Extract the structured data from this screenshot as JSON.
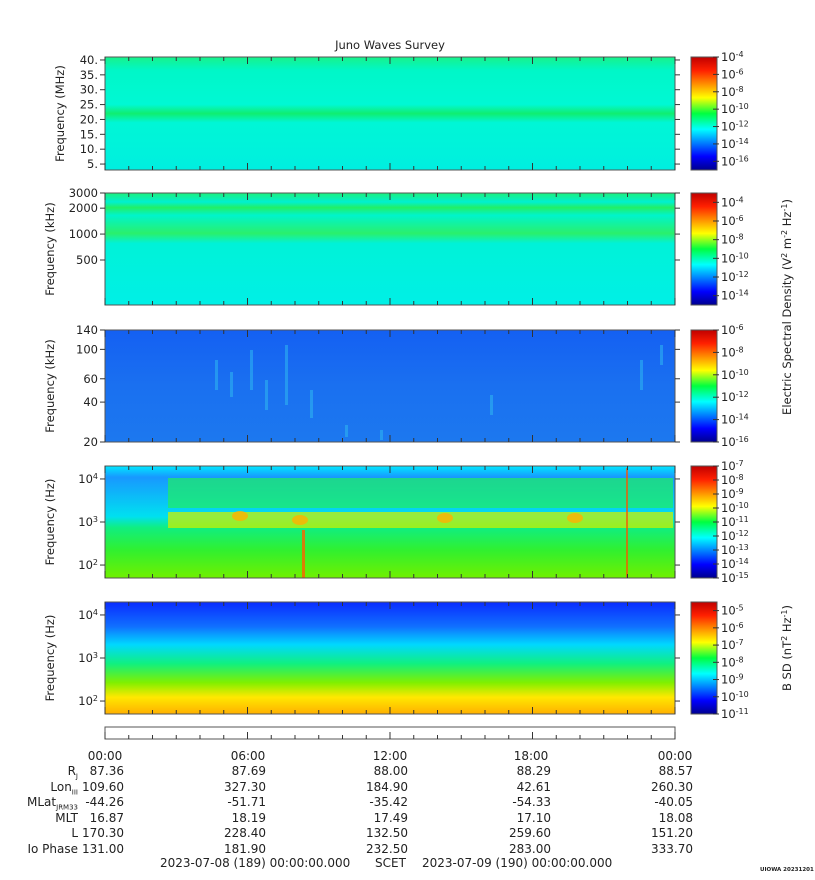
{
  "chart_data": [
    {
      "type": "heatmap",
      "title": "Juno Waves Survey",
      "ylabel": "Frequency (MHz)",
      "yscale": "linear",
      "ylim": [
        3,
        41
      ],
      "y_ticks": [
        5,
        10,
        15,
        20,
        25,
        30,
        35,
        40
      ],
      "y_tick_labels": [
        "5.",
        "10.",
        "15.",
        "20.",
        "25.",
        "30.",
        "35.",
        "40."
      ],
      "colorbar": {
        "min_exp": -17,
        "max_exp": -4,
        "tick_exps": [
          -16,
          -14,
          -12,
          -10,
          -8,
          -6,
          -4
        ]
      }
    },
    {
      "type": "heatmap",
      "ylabel": "Frequency (kHz)",
      "yscale": "log",
      "ylim": [
        150,
        3000
      ],
      "y_ticks": [
        500,
        1000,
        2000,
        3000
      ],
      "y_tick_labels": [
        "500",
        "1000",
        "2000",
        "3000"
      ],
      "colorbar": {
        "min_exp": -15,
        "max_exp": -3,
        "tick_exps": [
          -14,
          -12,
          -10,
          -8,
          -6,
          -4
        ]
      }
    },
    {
      "type": "heatmap",
      "ylabel": "Frequency (kHz)",
      "yscale": "log",
      "ylim": [
        20,
        140
      ],
      "y_ticks": [
        20,
        40,
        60,
        100,
        140
      ],
      "y_tick_labels": [
        "20",
        "40",
        "60",
        "100",
        "140"
      ],
      "colorbar": {
        "min_exp": -16,
        "max_exp": -6,
        "tick_exps": [
          -16,
          -14,
          -12,
          -10,
          -8,
          -6
        ]
      }
    },
    {
      "type": "heatmap",
      "ylabel": "Frequency (Hz)",
      "yscale": "log",
      "ylim": [
        50,
        20000
      ],
      "y_ticks": [
        100,
        1000,
        10000
      ],
      "y_tick_exps": [
        2,
        3,
        4
      ],
      "colorbar": {
        "min_exp": -15,
        "max_exp": -7,
        "tick_exps": [
          -15,
          -14,
          -13,
          -12,
          -11,
          -10,
          -9,
          -8,
          -7
        ]
      }
    },
    {
      "type": "heatmap",
      "ylabel": "Frequency (Hz)",
      "yscale": "log",
      "ylim": [
        50,
        20000
      ],
      "y_ticks": [
        100,
        1000,
        10000
      ],
      "y_tick_exps": [
        2,
        3,
        4
      ],
      "colorbar": {
        "min_exp": -11,
        "max_exp": -4.5,
        "tick_exps": [
          -11,
          -10,
          -9,
          -8,
          -7,
          -6,
          -5
        ]
      }
    }
  ],
  "colorbar_label_e": "Electric Spectral Density (V",
  "colorbar_label_b": "B SD (nT",
  "time_axis": {
    "labels": [
      "00:00",
      "06:00",
      "12:00",
      "18:00",
      "00:00"
    ]
  },
  "ephemeris": {
    "rows": [
      {
        "name": "R",
        "sub": "J",
        "values": [
          "87.36",
          "87.69",
          "88.00",
          "88.29",
          "88.57"
        ]
      },
      {
        "name": "Lon",
        "sub": "III",
        "values": [
          "109.60",
          "327.30",
          "184.90",
          "42.61",
          "260.30"
        ]
      },
      {
        "name": "MLat",
        "sub": "JRM33",
        "values": [
          "-44.26",
          "-51.71",
          "-35.42",
          "-54.33",
          "-40.05"
        ]
      },
      {
        "name": "MLT",
        "sub": "",
        "values": [
          "16.87",
          "18.19",
          "17.49",
          "17.10",
          "18.08"
        ]
      },
      {
        "name": "L",
        "sub": "",
        "values": [
          "170.30",
          "228.40",
          "132.50",
          "259.60",
          "151.20"
        ]
      },
      {
        "name": "Io Phase",
        "sub": "",
        "values": [
          "131.00",
          "181.90",
          "232.50",
          "283.00",
          "333.70"
        ]
      }
    ]
  },
  "footer": {
    "start": "2023-07-08 (189) 00:00:00.000",
    "scet": "SCET",
    "end": "2023-07-09 (190) 00:00:00.000"
  },
  "credit": "UIOWA 20231201",
  "colors": {
    "frame": "#555555",
    "text": "#222222"
  }
}
